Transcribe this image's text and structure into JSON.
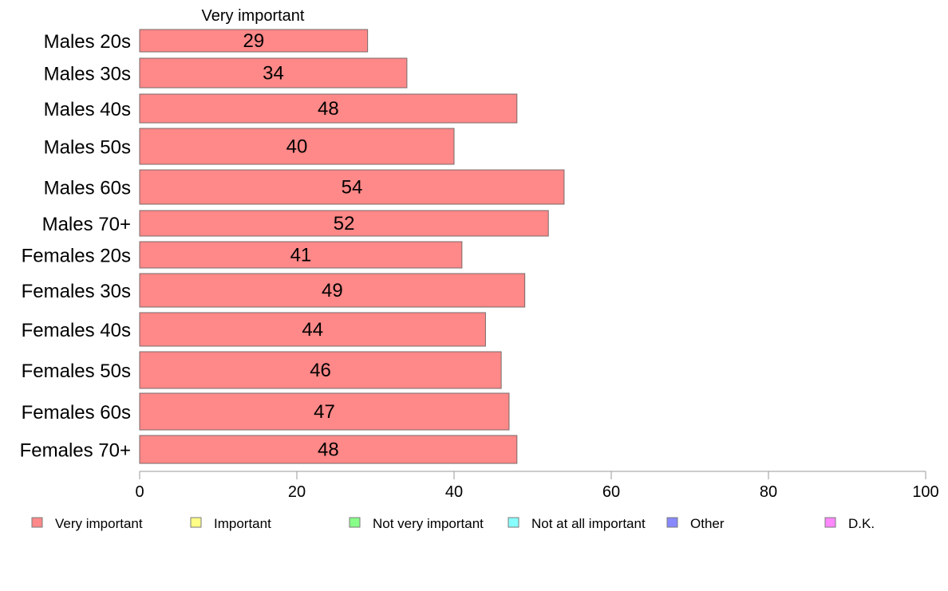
{
  "chart_data": {
    "type": "bar",
    "orientation": "horizontal",
    "column_header": "Very important",
    "categories": [
      "Males 20s",
      "Males 30s",
      "Males 40s",
      "Males 50s",
      "Males 60s",
      "Males 70+",
      "Females 20s",
      "Females 30s",
      "Females 40s",
      "Females 50s",
      "Females 60s",
      "Females 70+"
    ],
    "series": [
      {
        "name": "Very important",
        "color": "#ff8888",
        "values": [
          29,
          34,
          48,
          40,
          54,
          52,
          41,
          49,
          44,
          46,
          47,
          48
        ]
      }
    ],
    "bar_labels": [
      "29",
      "34",
      "48",
      "40",
      "54",
      "52",
      "41",
      "49",
      "44",
      "46",
      "47",
      "48"
    ],
    "xlim": [
      0,
      100
    ],
    "xticks": [
      0,
      20,
      40,
      60,
      80,
      100
    ],
    "grid": false,
    "legend_position": "bottom",
    "legend": [
      {
        "label": "Very important",
        "color": "#ff8888"
      },
      {
        "label": "Important",
        "color": "#ffff88"
      },
      {
        "label": "Not very important",
        "color": "#88ff88"
      },
      {
        "label": "Not at all important",
        "color": "#88ffff"
      },
      {
        "label": "Other",
        "color": "#8888ff"
      },
      {
        "label": "D.K.",
        "color": "#ff88ff"
      }
    ]
  }
}
